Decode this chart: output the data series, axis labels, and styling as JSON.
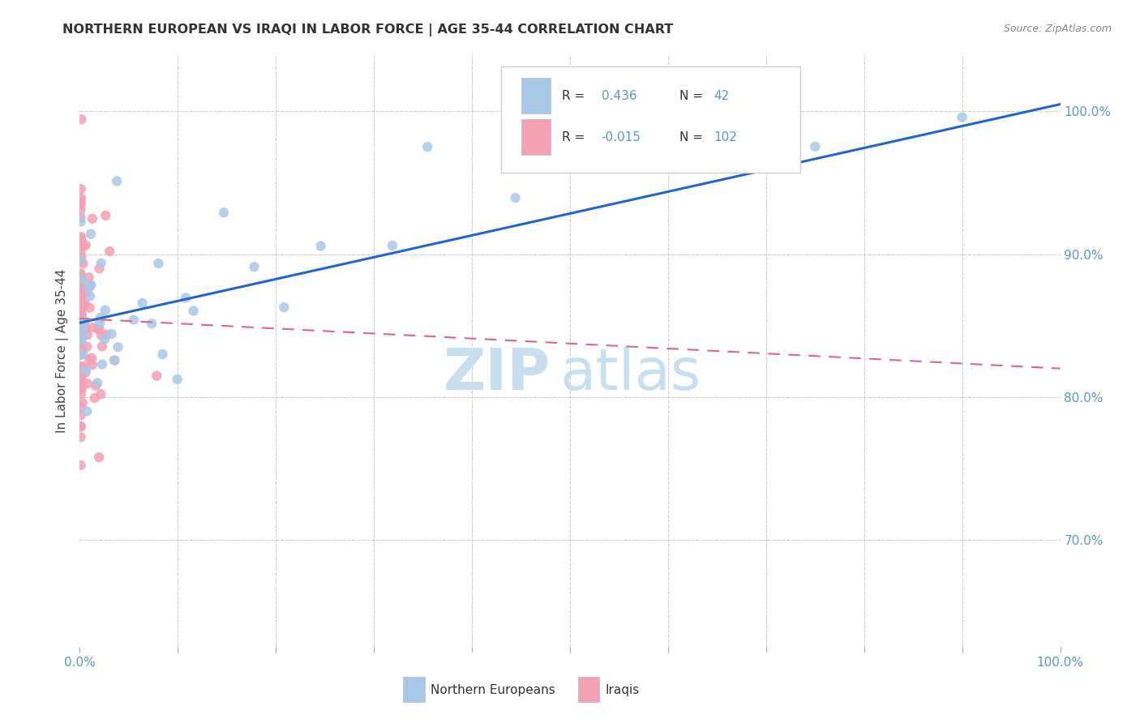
{
  "title": "NORTHERN EUROPEAN VS IRAQI IN LABOR FORCE | AGE 35-44 CORRELATION CHART",
  "source": "Source: ZipAtlas.com",
  "ylabel": "In Labor Force | Age 35-44",
  "blue_R": 0.436,
  "blue_N": 42,
  "pink_R": -0.015,
  "pink_N": 102,
  "blue_color": "#a8c8e8",
  "pink_color": "#f4a0b5",
  "blue_line_color": "#2266cc",
  "pink_line_color": "#dd6688",
  "watermark_zip": "ZIP",
  "watermark_atlas": "atlas",
  "legend_blue_label": "Northern Europeans",
  "legend_pink_label": "Iraqis",
  "y_ticks": [
    0.7,
    0.8,
    0.9,
    1.0
  ],
  "y_tick_labels": [
    "70.0%",
    "80.0%",
    "90.0%",
    "100.0%"
  ],
  "xlim": [
    0.0,
    1.0
  ],
  "ylim": [
    0.625,
    1.04
  ],
  "grid_color": "#cccccc",
  "tick_color": "#5599cc",
  "title_color": "#333333",
  "ylabel_color": "#444444"
}
